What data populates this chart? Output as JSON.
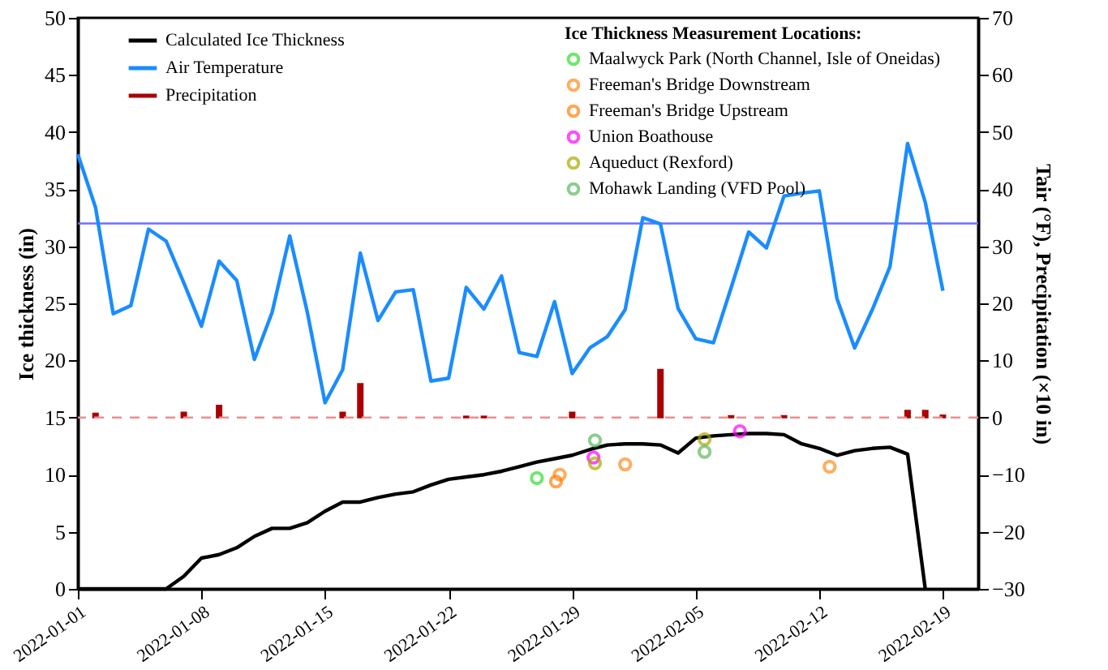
{
  "chart_data": {
    "type": "line",
    "ylabel": "Ice thickness (in)",
    "y2label": "Tair (°F), Precipitation (×10 in)",
    "legend_title": "Ice Thickness Measurement Locations:",
    "legend": "top",
    "xlim": [
      "2022-01-01",
      "2022-02-21"
    ],
    "xticks": [
      "2022-01-01",
      "2022-01-08",
      "2022-01-15",
      "2022-01-22",
      "2022-01-29",
      "2022-02-05",
      "2022-02-12",
      "2022-02-19"
    ],
    "ylim": [
      0,
      50
    ],
    "yticks": [
      0,
      5,
      10,
      15,
      20,
      25,
      30,
      35,
      40,
      45,
      50
    ],
    "y2lim": [
      -30,
      70
    ],
    "y2ticks": [
      -30,
      -20,
      -10,
      0,
      10,
      20,
      30,
      40,
      50,
      60,
      70
    ],
    "grid": false,
    "ref_lines": [
      {
        "axis": "y",
        "value": 32,
        "color": "#6f6fff",
        "line_style": "solid"
      },
      {
        "axis": "y2",
        "value": 0,
        "color": "#e89090",
        "line_style": "dashed"
      }
    ],
    "series": [
      {
        "name": "Calculated Ice Thickness",
        "color": "#000000",
        "marker": "none",
        "line_style": "solid",
        "x": [
          "2022-01-01",
          "2022-01-02",
          "2022-01-03",
          "2022-01-04",
          "2022-01-05",
          "2022-01-06",
          "2022-01-07",
          "2022-01-08",
          "2022-01-09",
          "2022-01-10",
          "2022-01-11",
          "2022-01-12",
          "2022-01-13",
          "2022-01-14",
          "2022-01-15",
          "2022-01-16",
          "2022-01-17",
          "2022-01-18",
          "2022-01-19",
          "2022-01-20",
          "2022-01-21",
          "2022-01-22",
          "2022-01-23",
          "2022-01-24",
          "2022-01-25",
          "2022-01-26",
          "2022-01-27",
          "2022-01-28",
          "2022-01-29",
          "2022-01-30",
          "2022-01-31",
          "2022-02-01",
          "2022-02-02",
          "2022-02-03",
          "2022-02-04",
          "2022-02-05",
          "2022-02-06",
          "2022-02-07",
          "2022-02-08",
          "2022-02-09",
          "2022-02-10",
          "2022-02-11",
          "2022-02-12",
          "2022-02-13",
          "2022-02-14",
          "2022-02-15",
          "2022-02-16",
          "2022-02-17",
          "2022-02-18"
        ],
        "values": [
          0,
          0,
          0,
          0,
          0,
          0,
          1.1,
          2.7,
          3.0,
          3.6,
          4.6,
          5.3,
          5.3,
          5.8,
          6.8,
          7.6,
          7.6,
          8.0,
          8.3,
          8.5,
          9.1,
          9.6,
          9.8,
          10.0,
          10.3,
          10.7,
          11.1,
          11.4,
          11.7,
          12.2,
          12.6,
          12.7,
          12.7,
          12.6,
          11.9,
          13.2,
          13.4,
          13.5,
          13.6,
          13.6,
          13.5,
          12.7,
          12.3,
          11.7,
          12.1,
          12.3,
          12.4,
          11.8,
          0
        ]
      },
      {
        "name": "Air Temperature",
        "axis": "y2",
        "color": "#1a8cff",
        "marker": "none",
        "line_style": "solid",
        "x": [
          "2022-01-01",
          "2022-01-02",
          "2022-01-03",
          "2022-01-04",
          "2022-01-05",
          "2022-01-06",
          "2022-01-07",
          "2022-01-08",
          "2022-01-09",
          "2022-01-10",
          "2022-01-11",
          "2022-01-12",
          "2022-01-13",
          "2022-01-14",
          "2022-01-15",
          "2022-01-16",
          "2022-01-17",
          "2022-01-18",
          "2022-01-19",
          "2022-01-20",
          "2022-01-21",
          "2022-01-22",
          "2022-01-23",
          "2022-01-24",
          "2022-01-25",
          "2022-01-26",
          "2022-01-27",
          "2022-01-28",
          "2022-01-29",
          "2022-01-30",
          "2022-01-31",
          "2022-02-01",
          "2022-02-02",
          "2022-02-03",
          "2022-02-04",
          "2022-02-05",
          "2022-02-06",
          "2022-02-07",
          "2022-02-08",
          "2022-02-09",
          "2022-02-10",
          "2022-02-11",
          "2022-02-12",
          "2022-02-13",
          "2022-02-14",
          "2022-02-15",
          "2022-02-16",
          "2022-02-17",
          "2022-02-18",
          "2022-02-19"
        ],
        "values": [
          46.1,
          36.8,
          18.2,
          19.6,
          33.0,
          30.9,
          23.6,
          16.0,
          27.4,
          24.0,
          10.2,
          18.4,
          31.8,
          18.4,
          2.6,
          8.4,
          28.8,
          17.0,
          22.0,
          22.4,
          6.4,
          6.9,
          22.8,
          19.0,
          24.8,
          11.4,
          10.7,
          20.3,
          7.7,
          12.2,
          14.2,
          18.9,
          35.0,
          33.9,
          19.1,
          13.8,
          13.1,
          22.7,
          32.5,
          29.7,
          38.8,
          39.3,
          39.7,
          20.8,
          12.2,
          18.9,
          26.4,
          48.0,
          37.7,
          22.2
        ]
      },
      {
        "name": "Precipitation",
        "type": "bar",
        "axis": "y2",
        "color": "#aa0000",
        "x": [
          "2022-01-02",
          "2022-01-07",
          "2022-01-09",
          "2022-01-16",
          "2022-01-17",
          "2022-01-23",
          "2022-01-24",
          "2022-01-29",
          "2022-02-03",
          "2022-02-07",
          "2022-02-10",
          "2022-02-17",
          "2022-02-18",
          "2022-02-19"
        ],
        "values": [
          0.7,
          0.9,
          2.1,
          0.9,
          5.9,
          0.2,
          0.2,
          0.9,
          8.4,
          0.3,
          0.3,
          1.2,
          1.2,
          0.4
        ]
      },
      {
        "name": "Maalwyck Park (North Channel, Isle of Oneidas)",
        "type": "scatter",
        "color": "#33dd33",
        "marker": "circle",
        "x": [
          "2022-01-27"
        ],
        "values": [
          9.7
        ]
      },
      {
        "name": "Freeman's Bridge Downstream",
        "type": "scatter",
        "color": "#ff8c1a",
        "marker": "circle",
        "x": [
          "2022-01-28T07:00",
          "2022-02-01",
          "2022-02-12T14:00"
        ],
        "values": [
          10.0,
          10.9,
          10.7
        ]
      },
      {
        "name": "Freeman's Bridge Upstream",
        "type": "scatter",
        "color": "#ff7f0e",
        "marker": "circle",
        "x": [
          "2022-01-28T02:00"
        ],
        "values": [
          9.4
        ]
      },
      {
        "name": "Union Boathouse",
        "type": "scatter",
        "color": "#ff00ff",
        "marker": "circle",
        "x": [
          "2022-01-30T05:00",
          "2022-02-07T12:00"
        ],
        "values": [
          11.5,
          13.8
        ]
      },
      {
        "name": "Aqueduct (Rexford)",
        "type": "scatter",
        "color": "#aaaa00",
        "marker": "circle",
        "x": [
          "2022-01-30T07:00",
          "2022-02-05T12:00"
        ],
        "values": [
          11.0,
          13.1
        ]
      },
      {
        "name": "Mohawk Landing (VFD Pool)",
        "type": "scatter",
        "color": "#5cb85c",
        "marker": "circle",
        "x": [
          "2022-01-30T07:00",
          "2022-02-05T12:00"
        ],
        "values": [
          13.0,
          12.0
        ]
      }
    ]
  }
}
